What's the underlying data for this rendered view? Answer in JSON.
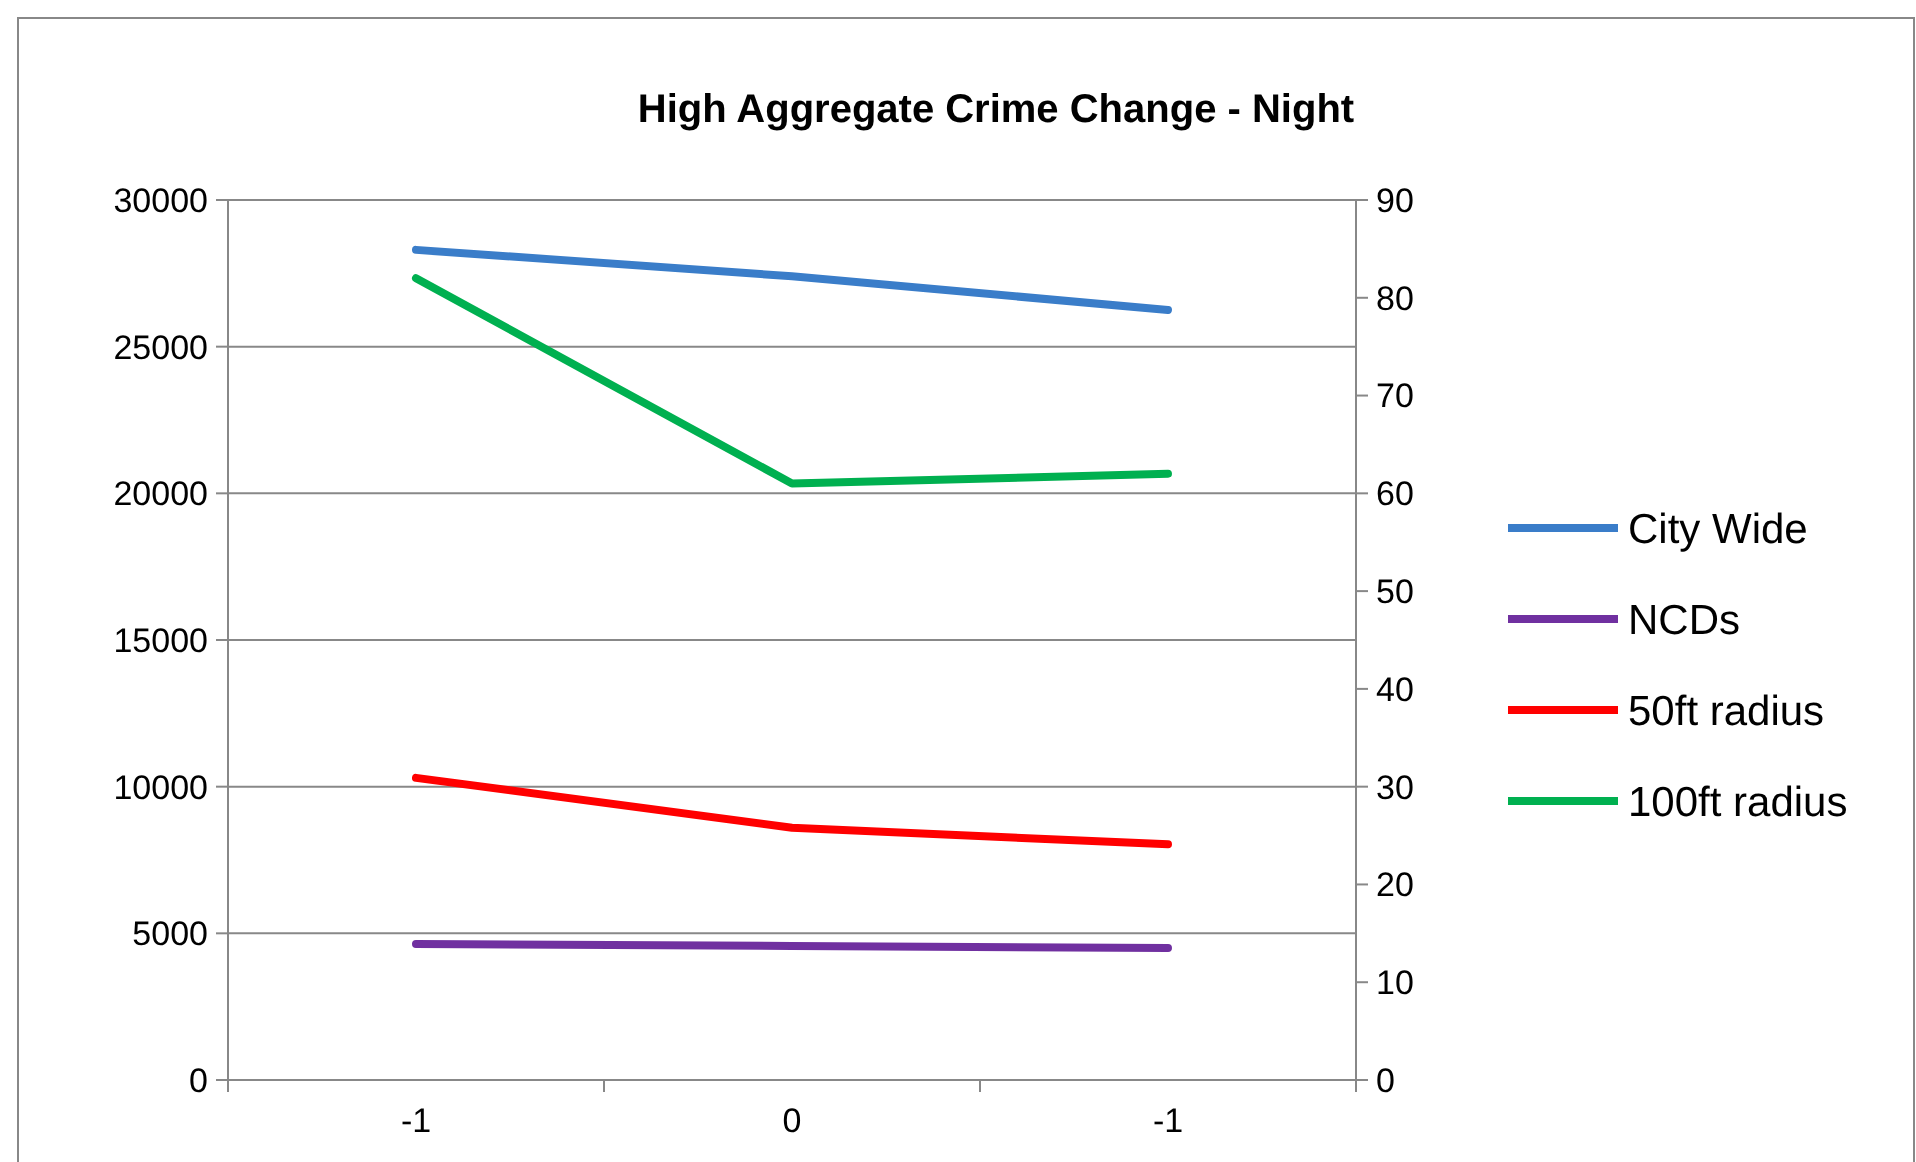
{
  "chart_data": {
    "type": "line",
    "title": "High Aggregate Crime Change - Night",
    "categories": [
      "-1",
      "0",
      "-1"
    ],
    "series": [
      {
        "name": "City Wide",
        "color": "#3a7dc9",
        "values": [
          28300,
          27400,
          26250
        ]
      },
      {
        "name": "NCDs",
        "color": "#7030a0",
        "values": [
          4640,
          4570,
          4500
        ]
      },
      {
        "name": "50ft radius",
        "color": "#ff0000",
        "values": [
          30.9,
          25.8,
          24.1
        ],
        "axis": "y2"
      },
      {
        "name": "100ft radius",
        "color": "#00b050",
        "values": [
          82,
          61,
          62
        ],
        "axis": "y2"
      }
    ],
    "ylim": [
      0,
      30000
    ],
    "yticks": [
      0,
      5000,
      10000,
      15000,
      20000,
      25000,
      30000
    ],
    "y2lim": [
      0,
      90
    ],
    "y2ticks": [
      0,
      10,
      20,
      30,
      40,
      50,
      60,
      70,
      80,
      90
    ],
    "grid": "y",
    "legend": "right",
    "marker": "none",
    "line_style": "solid"
  }
}
